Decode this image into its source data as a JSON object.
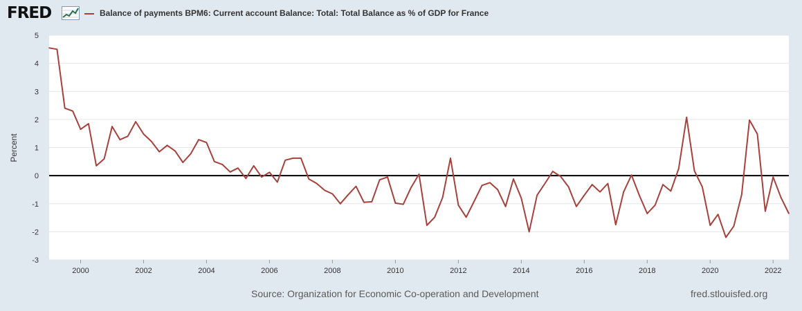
{
  "header": {
    "logo_text": "FRED",
    "logo_icon": "line-chart-icon",
    "legend_label": "Balance of payments BPM6: Current account Balance: Total: Total Balance as % of GDP for France"
  },
  "footer": {
    "source": "Source: Organization for Economic Co-operation and Development",
    "site": "fred.stlouisfed.org"
  },
  "colors": {
    "background": "#e1e9f0",
    "plot_background": "#ffffff",
    "series": "#a7403a",
    "grid": "#e6e6e6",
    "zero_line": "#000000"
  },
  "chart_data": {
    "type": "line",
    "title": "Balance of payments BPM6: Current account Balance: Total: Total Balance as % of GDP for France",
    "xlabel": "",
    "ylabel": "Percent",
    "xlim": [
      1999.0,
      2022.5
    ],
    "ylim": [
      -3,
      5
    ],
    "xticks": [
      2000,
      2002,
      2004,
      2006,
      2008,
      2010,
      2012,
      2014,
      2016,
      2018,
      2020,
      2022
    ],
    "xtick_labels": [
      "2000",
      "2002",
      "2004",
      "2006",
      "2008",
      "2010",
      "2012",
      "2014",
      "2016",
      "2018",
      "2020",
      "2022"
    ],
    "yticks": [
      -3,
      -2,
      -1,
      0,
      1,
      2,
      3,
      4,
      5
    ],
    "ytick_labels": [
      "-3",
      "-2",
      "-1",
      "0",
      "1",
      "2",
      "3",
      "4",
      "5"
    ],
    "grid": "horizontal",
    "reference_line": 0,
    "series": [
      {
        "name": "Balance of payments BPM6: Current account Balance: Total: Total Balance as % of GDP for France",
        "x": [
          1999.0,
          1999.25,
          1999.5,
          1999.75,
          2000.0,
          2000.25,
          2000.5,
          2000.75,
          2001.0,
          2001.25,
          2001.5,
          2001.75,
          2002.0,
          2002.25,
          2002.5,
          2002.75,
          2003.0,
          2003.25,
          2003.5,
          2003.75,
          2004.0,
          2004.25,
          2004.5,
          2004.75,
          2005.0,
          2005.25,
          2005.5,
          2005.75,
          2006.0,
          2006.25,
          2006.5,
          2006.75,
          2007.0,
          2007.25,
          2007.5,
          2007.75,
          2008.0,
          2008.25,
          2008.5,
          2008.75,
          2009.0,
          2009.25,
          2009.5,
          2009.75,
          2010.0,
          2010.25,
          2010.5,
          2010.75,
          2011.0,
          2011.25,
          2011.5,
          2011.75,
          2012.0,
          2012.25,
          2012.5,
          2012.75,
          2013.0,
          2013.25,
          2013.5,
          2013.75,
          2014.0,
          2014.25,
          2014.5,
          2014.75,
          2015.0,
          2015.25,
          2015.5,
          2015.75,
          2016.0,
          2016.25,
          2016.5,
          2016.75,
          2017.0,
          2017.25,
          2017.5,
          2017.75,
          2018.0,
          2018.25,
          2018.5,
          2018.75,
          2019.0,
          2019.25,
          2019.5,
          2019.75,
          2020.0,
          2020.25,
          2020.5,
          2020.75,
          2021.0,
          2021.25,
          2021.5,
          2021.75,
          2022.0,
          2022.25,
          2022.5
        ],
        "values": [
          4.55,
          4.5,
          2.4,
          2.3,
          1.65,
          1.85,
          0.35,
          0.6,
          1.75,
          1.28,
          1.4,
          1.92,
          1.48,
          1.22,
          0.85,
          1.08,
          0.88,
          0.47,
          0.78,
          1.28,
          1.18,
          0.5,
          0.4,
          0.13,
          0.27,
          -0.1,
          0.35,
          -0.05,
          0.12,
          -0.23,
          0.55,
          0.62,
          0.62,
          -0.12,
          -0.28,
          -0.52,
          -0.65,
          -1.0,
          -0.68,
          -0.38,
          -0.95,
          -0.93,
          -0.15,
          -0.05,
          -0.98,
          -1.02,
          -0.42,
          0.05,
          -1.77,
          -1.48,
          -0.78,
          0.62,
          -1.05,
          -1.48,
          -0.92,
          -0.35,
          -0.25,
          -0.5,
          -1.1,
          -0.12,
          -0.8,
          -2.0,
          -0.7,
          -0.28,
          0.15,
          -0.03,
          -0.4,
          -1.1,
          -0.7,
          -0.32,
          -0.58,
          -0.28,
          -1.75,
          -0.58,
          0.02,
          -0.7,
          -1.35,
          -1.05,
          -0.32,
          -0.55,
          0.25,
          2.08,
          0.17,
          -0.4,
          -1.77,
          -1.38,
          -2.2,
          -1.8,
          -0.68,
          1.98,
          1.48,
          -1.27,
          -0.05,
          -0.78,
          -1.35
        ]
      }
    ]
  }
}
